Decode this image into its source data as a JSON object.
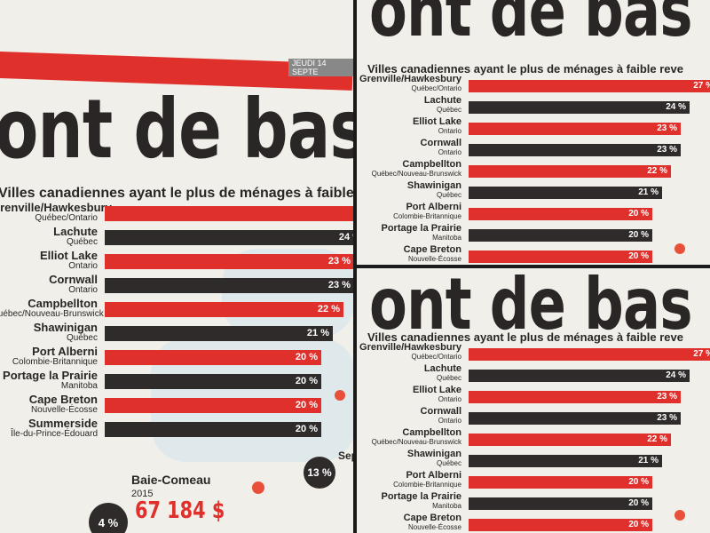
{
  "headline": "ont de bas reve",
  "headline_short": "ont de bas reve",
  "subtitle": "Villes canadiennes ayant le plus de ménages à faible re",
  "subtitle_full": "Villes canadiennes ayant le plus de ménages à faible reve",
  "date": "JEUDI 14 SEPTE",
  "rows": [
    {
      "city": "Grenville/Hawkesbury",
      "province": "Québec/Ontario",
      "value": "27 %",
      "pct": 27,
      "color": "red"
    },
    {
      "city": "Lachute",
      "province": "Québec",
      "value": "24 %",
      "pct": 24,
      "color": "dark"
    },
    {
      "city": "Elliot Lake",
      "province": "Ontario",
      "value": "23 %",
      "pct": 23,
      "color": "red"
    },
    {
      "city": "Cornwall",
      "province": "Ontario",
      "value": "23 %",
      "pct": 23,
      "color": "dark"
    },
    {
      "city": "Campbellton",
      "province": "Québec/Nouveau-Brunswick",
      "value": "22 %",
      "pct": 22,
      "color": "red"
    },
    {
      "city": "Shawinigan",
      "province": "Québec",
      "value": "21 %",
      "pct": 21,
      "color": "dark"
    },
    {
      "city": "Port Alberni",
      "province": "Colombie-Britannique",
      "value": "20 %",
      "pct": 20,
      "color": "red"
    },
    {
      "city": "Portage la Prairie",
      "province": "Manitoba",
      "value": "20 %",
      "pct": 20,
      "color": "dark"
    },
    {
      "city": "Cape Breton",
      "province": "Nouvelle-Écosse",
      "value": "20 %",
      "pct": 20,
      "color": "red"
    },
    {
      "city": "Summerside",
      "province": "Île-du-Prince-Édouard",
      "value": "20 %",
      "pct": 20,
      "color": "dark"
    }
  ],
  "baie_comeau": {
    "label": "Baie-Comeau",
    "year": "2015",
    "amount": "67 184 $",
    "badge": "4 %",
    "badge2": "13 %",
    "extra": "Sep"
  },
  "colors": {
    "red": "#e0302b",
    "dark": "#2f2b2b",
    "paper": "#f1efe9"
  }
}
